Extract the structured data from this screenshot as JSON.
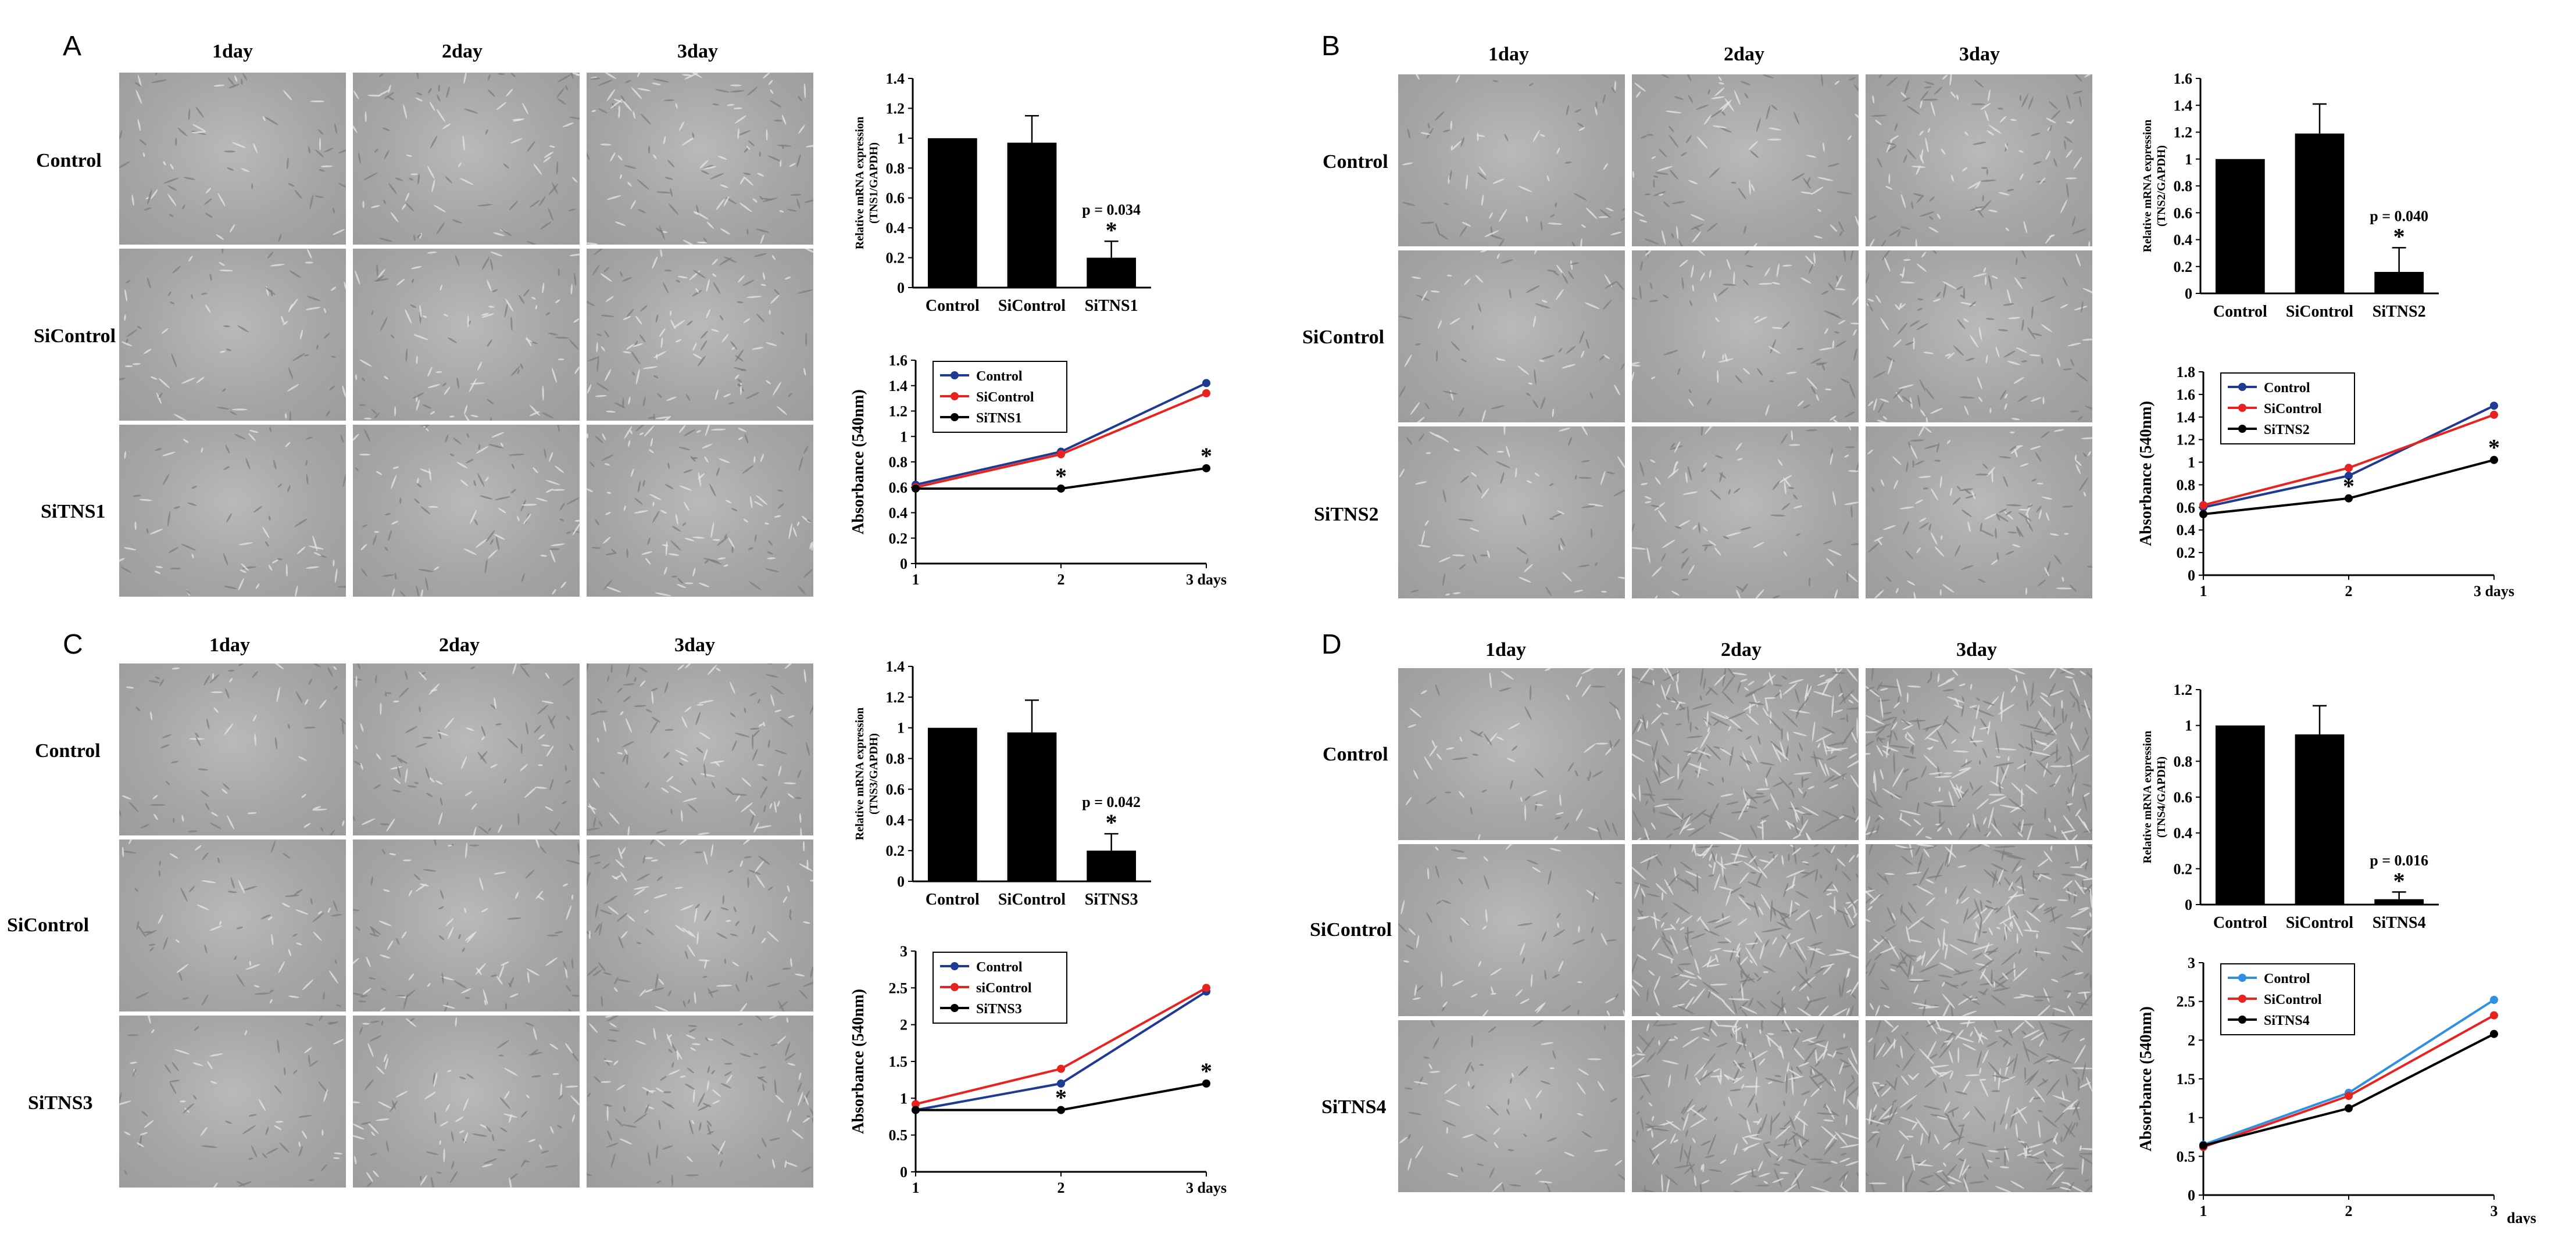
{
  "panels": [
    {
      "letter": "A",
      "days": [
        "1day",
        "2day",
        "3day"
      ],
      "rows": [
        "Control",
        "SiControl",
        "SiTNS1"
      ],
      "charts": {
        "bar": {
          "ylabel_line1": "Relative mRNA expression",
          "ylabel_line2": "(TNS1/GAPDH)",
          "annot": "p = 0.034"
        },
        "line": {
          "ylabel": "Absorbance (540nm)"
        }
      }
    },
    {
      "letter": "B",
      "days": [
        "1day",
        "2day",
        "3day"
      ],
      "rows": [
        "Control",
        "SiControl",
        "SiTNS2"
      ],
      "charts": {
        "bar": {
          "ylabel_line1": "Relative mRNA expression",
          "ylabel_line2": "(TNS2/GAPDH)",
          "annot": "p = 0.040"
        },
        "line": {
          "ylabel": "Absorbance (540nm)"
        }
      }
    },
    {
      "letter": "C",
      "days": [
        "1day",
        "2day",
        "3day"
      ],
      "rows": [
        "Control",
        "SiControl",
        "SiTNS3"
      ],
      "charts": {
        "bar": {
          "ylabel_line1": "Relative mRNA expression",
          "ylabel_line2": "(TNS3/GAPDH)",
          "annot": "p = 0.042"
        },
        "line": {
          "ylabel": "Absorbance (540nm)"
        }
      }
    },
    {
      "letter": "D",
      "days": [
        "1day",
        "2day",
        "3day"
      ],
      "rows": [
        "Control",
        "SiControl",
        "SiTNS4"
      ],
      "charts": {
        "bar": {
          "ylabel_line1": "Relative mRNA expression",
          "ylabel_line2": "(TNS4/GAPDH)",
          "annot": "p = 0.016"
        },
        "line": {
          "ylabel": "Absorbance (540nm)"
        }
      }
    }
  ],
  "chart_data": [
    {
      "panel": "A",
      "type": "bar",
      "categories": [
        "Control",
        "SiControl",
        "SiTNS1"
      ],
      "values": [
        1.0,
        0.97,
        0.2
      ],
      "errors": [
        0,
        0.18,
        0.11
      ],
      "ylim": [
        0,
        1.4
      ],
      "yticks": [
        0,
        0.2,
        0.4,
        0.6,
        0.8,
        1,
        1.2,
        1.4
      ],
      "ylabel": "Relative mRNA expression (TNS1/GAPDH)",
      "annotation": "p = 0.034",
      "star": "*",
      "bar_color": "#000000"
    },
    {
      "panel": "A",
      "type": "line",
      "x": [
        "1",
        "2",
        "3 days"
      ],
      "ylim": [
        0,
        1.6
      ],
      "yticks": [
        0,
        0.2,
        0.4,
        0.6,
        0.8,
        1,
        1.2,
        1.4,
        1.6
      ],
      "ylabel": "Absorbance (540nm)",
      "legend": "top-left",
      "series": [
        {
          "name": "Control",
          "color": "#1f3a93",
          "values": [
            0.62,
            0.88,
            1.42
          ]
        },
        {
          "name": "SiControl",
          "color": "#e8231f",
          "values": [
            0.6,
            0.86,
            1.34
          ]
        },
        {
          "name": "SiTNS1",
          "color": "#000000",
          "values": [
            0.59,
            0.59,
            0.75
          ]
        }
      ],
      "stars": [
        "",
        "*",
        "*"
      ]
    },
    {
      "panel": "B",
      "type": "bar",
      "categories": [
        "Control",
        "SiControl",
        "SiTNS2"
      ],
      "values": [
        1.0,
        1.19,
        0.16
      ],
      "errors": [
        0,
        0.22,
        0.18
      ],
      "ylim": [
        0,
        1.6
      ],
      "yticks": [
        0,
        0.2,
        0.4,
        0.6,
        0.8,
        1,
        1.2,
        1.4,
        1.6
      ],
      "ylabel": "Relative mRNA expression (TNS2/GAPDH)",
      "annotation": "p = 0.040",
      "star": "*",
      "bar_color": "#000000"
    },
    {
      "panel": "B",
      "type": "line",
      "x": [
        "1",
        "2",
        "3 days"
      ],
      "ylim": [
        0,
        1.8
      ],
      "yticks": [
        0,
        0.2,
        0.4,
        0.6,
        0.8,
        1,
        1.2,
        1.4,
        1.6,
        1.8
      ],
      "ylabel": "Absorbance (540nm)",
      "legend": "top-left",
      "series": [
        {
          "name": "Control",
          "color": "#1f3a93",
          "values": [
            0.6,
            0.88,
            1.5
          ]
        },
        {
          "name": "SiControl",
          "color": "#e8231f",
          "values": [
            0.62,
            0.95,
            1.42
          ]
        },
        {
          "name": "SiTNS2",
          "color": "#000000",
          "values": [
            0.54,
            0.68,
            1.02
          ]
        }
      ],
      "stars": [
        "",
        "*",
        "*"
      ]
    },
    {
      "panel": "C",
      "type": "bar",
      "categories": [
        "Control",
        "SiControl",
        "SiTNS3"
      ],
      "values": [
        1.0,
        0.97,
        0.2
      ],
      "errors": [
        0,
        0.21,
        0.11
      ],
      "ylim": [
        0,
        1.4
      ],
      "yticks": [
        0,
        0.2,
        0.4,
        0.6,
        0.8,
        1,
        1.2,
        1.4
      ],
      "ylabel": "Relative mRNA expression (TNS3/GAPDH)",
      "annotation": "p = 0.042",
      "star": "*",
      "bar_color": "#000000"
    },
    {
      "panel": "C",
      "type": "line",
      "x": [
        "1",
        "2",
        "3 days"
      ],
      "ylim": [
        0,
        3
      ],
      "yticks": [
        0,
        0.5,
        1,
        1.5,
        2,
        2.5,
        3
      ],
      "ylabel": "Absorbance (540nm)",
      "legend": "top-left",
      "series": [
        {
          "name": "Control",
          "color": "#1f3a93",
          "values": [
            0.84,
            1.2,
            2.45
          ]
        },
        {
          "name": "siControl",
          "color": "#e8231f",
          "values": [
            0.92,
            1.4,
            2.5
          ]
        },
        {
          "name": "SiTNS3",
          "color": "#000000",
          "values": [
            0.84,
            0.84,
            1.2
          ]
        }
      ],
      "stars": [
        "",
        "*",
        "*"
      ]
    },
    {
      "panel": "D",
      "type": "bar",
      "categories": [
        "Control",
        "SiControl",
        "SiTNS4"
      ],
      "values": [
        1.0,
        0.95,
        0.03
      ],
      "errors": [
        0,
        0.16,
        0.04
      ],
      "ylim": [
        0,
        1.2
      ],
      "yticks": [
        0,
        0.2,
        0.4,
        0.6,
        0.8,
        1,
        1.2
      ],
      "ylabel": "Relative mRNA expression (TNS4/GAPDH)",
      "annotation": "p = 0.016",
      "star": "*",
      "bar_color": "#000000"
    },
    {
      "panel": "D",
      "type": "line",
      "x": [
        "1",
        "2",
        "3"
      ],
      "x_unit": "days",
      "ylim": [
        0,
        3
      ],
      "yticks": [
        0,
        0.5,
        1,
        1.5,
        2,
        2.5,
        3
      ],
      "ylabel": "Absorbance (540nm)",
      "legend": "top-left",
      "series": [
        {
          "name": "Control",
          "color": "#2f8fe0",
          "values": [
            0.65,
            1.32,
            2.52
          ]
        },
        {
          "name": "SiControl",
          "color": "#e8231f",
          "values": [
            0.62,
            1.28,
            2.32
          ]
        },
        {
          "name": "SiTNS4",
          "color": "#000000",
          "values": [
            0.64,
            1.12,
            2.08
          ]
        }
      ],
      "stars": [
        "",
        "",
        ""
      ]
    }
  ]
}
